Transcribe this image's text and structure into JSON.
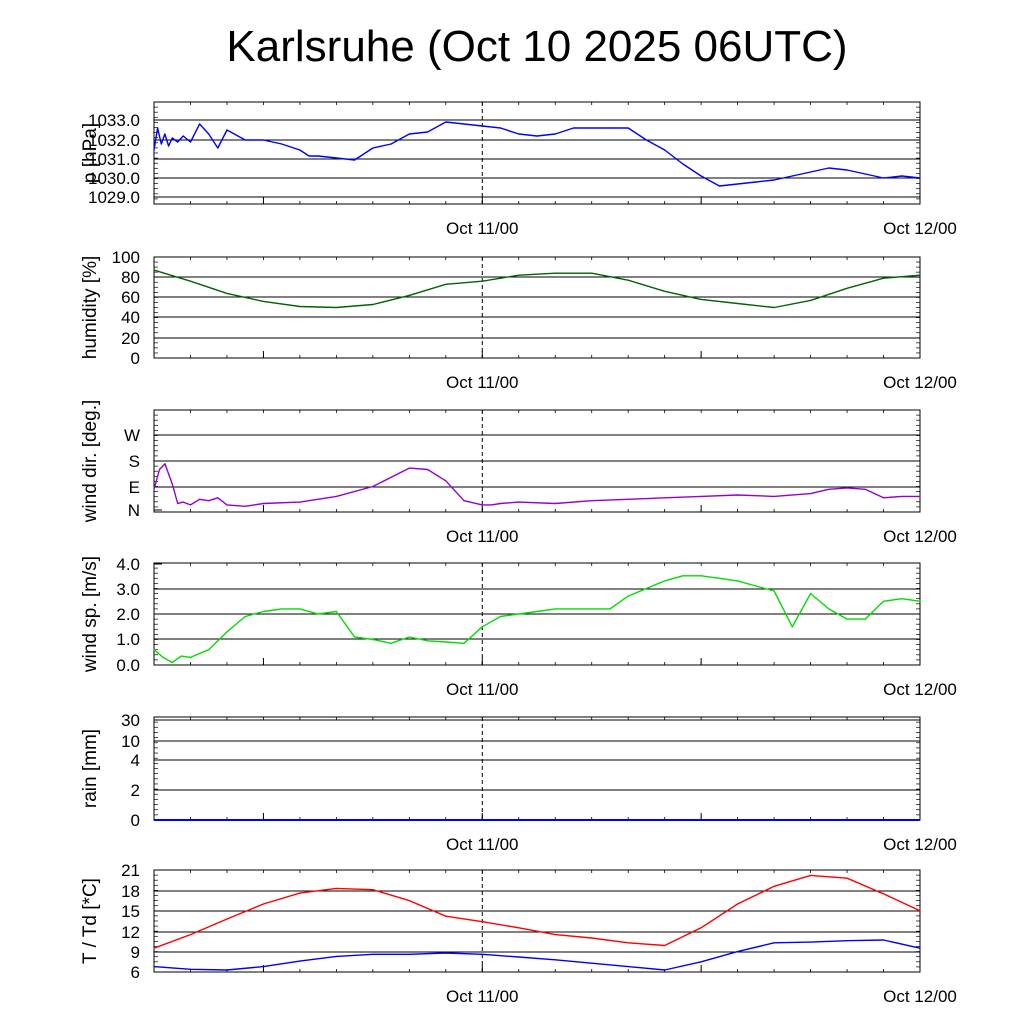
{
  "title": "Karlsruhe (Oct 10 2025 06UTC)",
  "colors": {
    "pressure": "#0000ff",
    "humidity": "#006400",
    "wind_dir": "#9400d3",
    "wind_speed": "#00dd00",
    "temperature": "#ff0000",
    "dewpoint": "#0000ff",
    "grid": "#000000"
  },
  "chart_data": [
    {
      "type": "line",
      "ylabel": "p [hPa]",
      "x_ticks": [
        "Oct 11/00",
        "Oct 12/00"
      ],
      "y_ticks": [
        "1033.0",
        "1032.0",
        "1031.0",
        "1030.0",
        "1029.0"
      ],
      "ylim": [
        1028.8,
        1033.9
      ],
      "x": [
        6,
        6.2,
        6.4,
        6.6,
        6.8,
        7,
        7.3,
        7.6,
        8,
        8.5,
        9,
        9.5,
        10,
        11,
        12,
        13,
        14,
        14.5,
        15,
        16,
        17,
        18,
        19,
        20,
        21,
        22,
        23,
        24,
        25,
        26,
        27,
        28,
        29,
        30,
        31,
        32,
        33,
        34,
        35,
        36,
        37,
        38,
        39,
        40,
        41,
        42,
        43,
        44,
        45,
        46,
        47,
        48
      ],
      "series": [
        {
          "name": "",
          "values": [
            1031.5,
            1032.6,
            1031.8,
            1032.3,
            1031.7,
            1032.1,
            1031.9,
            1032.2,
            1031.9,
            1032.8,
            1032.3,
            1031.6,
            1032.5,
            1032.0,
            1032.0,
            1031.8,
            1031.5,
            1031.2,
            1031.2,
            1031.1,
            1031.0,
            1031.6,
            1031.8,
            1032.3,
            1032.4,
            1032.9,
            1032.8,
            1032.7,
            1032.6,
            1032.3,
            1032.2,
            1032.3,
            1032.6,
            1032.6,
            1032.6,
            1032.6,
            1032.0,
            1031.5,
            1030.8,
            1030.2,
            1029.7,
            1029.8,
            1029.9,
            1030.0,
            1030.2,
            1030.4,
            1030.6,
            1030.5,
            1030.3,
            1030.1,
            1030.2,
            1030.1
          ]
        }
      ]
    },
    {
      "type": "line",
      "ylabel": "humidity [%]",
      "x_ticks": [
        "Oct 11/00",
        "Oct 12/00"
      ],
      "y_ticks": [
        "100",
        "80",
        "60",
        "40",
        "20",
        "0"
      ],
      "ylim": [
        0,
        100
      ],
      "x": [
        6,
        8,
        10,
        12,
        14,
        16,
        18,
        20,
        22,
        24,
        26,
        28,
        30,
        32,
        34,
        36,
        38,
        40,
        42,
        44,
        46,
        48
      ],
      "series": [
        {
          "name": "",
          "values": [
            87,
            76,
            64,
            56,
            51,
            50,
            53,
            62,
            73,
            76,
            82,
            84,
            84,
            77,
            66,
            58,
            54,
            50,
            57,
            69,
            79,
            82
          ]
        }
      ]
    },
    {
      "type": "line",
      "ylabel": "wind dir. [deg.]",
      "x_ticks": [
        "Oct 11/00",
        "Oct 12/00"
      ],
      "y_ticks": [
        "W",
        "S",
        "E",
        "N"
      ],
      "ylim": [
        0,
        360
      ],
      "x": [
        6,
        6.3,
        6.6,
        7,
        7.3,
        7.6,
        8,
        8.5,
        9,
        9.5,
        10,
        11,
        12,
        14,
        16,
        18,
        20,
        21,
        22,
        23,
        24,
        24.5,
        25,
        26,
        28,
        30,
        32,
        34,
        36,
        38,
        40,
        42,
        43,
        44,
        45,
        46,
        47,
        48
      ],
      "series": [
        {
          "name": "",
          "values": [
            80,
            150,
            170,
            100,
            30,
            35,
            25,
            45,
            40,
            50,
            25,
            20,
            30,
            35,
            55,
            90,
            155,
            150,
            110,
            40,
            25,
            25,
            30,
            35,
            30,
            40,
            45,
            50,
            55,
            60,
            55,
            65,
            80,
            85,
            80,
            50,
            55,
            55
          ]
        }
      ]
    },
    {
      "type": "line",
      "ylabel": "wind sp. [m/s]",
      "x_ticks": [
        "Oct 11/00",
        "Oct 12/00"
      ],
      "y_ticks": [
        "4.0",
        "3.0",
        "2.0",
        "1.0",
        "0.0"
      ],
      "ylim": [
        0,
        4
      ],
      "x": [
        6,
        6.5,
        7,
        7.5,
        8,
        9,
        10,
        11,
        12,
        13,
        14,
        15,
        16,
        17,
        18,
        19,
        20,
        21,
        22,
        23,
        24,
        25,
        26,
        27,
        28,
        29,
        30,
        31,
        32,
        33,
        34,
        35,
        36,
        37,
        38,
        39,
        40,
        41,
        42,
        43,
        44,
        45,
        46,
        47,
        48
      ],
      "series": [
        {
          "name": "",
          "values": [
            0.6,
            0.3,
            0.1,
            0.35,
            0.3,
            0.6,
            1.3,
            1.9,
            2.1,
            2.2,
            2.2,
            2.0,
            2.1,
            1.1,
            1.0,
            0.85,
            1.1,
            0.95,
            0.9,
            0.85,
            1.5,
            1.9,
            2.0,
            2.1,
            2.2,
            2.2,
            2.2,
            2.2,
            2.7,
            3.0,
            3.3,
            3.5,
            3.5,
            3.4,
            3.3,
            3.1,
            2.9,
            1.5,
            2.8,
            2.2,
            1.8,
            1.8,
            2.5,
            2.6,
            2.5
          ]
        }
      ]
    },
    {
      "type": "line",
      "ylabel": "rain [mm]",
      "x_ticks": [
        "Oct 11/00",
        "Oct 12/00"
      ],
      "y_ticks": [
        "30",
        "10",
        "4",
        "2",
        "0"
      ],
      "ylim": [
        0,
        30
      ],
      "x": [
        6,
        48
      ],
      "series": [
        {
          "name": "",
          "values": [
            0,
            0
          ]
        }
      ]
    },
    {
      "type": "line",
      "ylabel": "T / Td [*C]",
      "x_ticks": [
        "Oct 11/00",
        "Oct 12/00"
      ],
      "y_ticks": [
        "21",
        "18",
        "15",
        "12",
        "9",
        "6"
      ],
      "ylim": [
        6,
        21
      ],
      "x": [
        6,
        8,
        10,
        12,
        14,
        16,
        18,
        20,
        22,
        24,
        26,
        28,
        30,
        32,
        34,
        36,
        38,
        40,
        42,
        44,
        46,
        48
      ],
      "series": [
        {
          "name": "",
          "values": [
            9.5,
            11.5,
            13.8,
            16.0,
            17.6,
            18.3,
            18.1,
            16.5,
            14.2,
            13.4,
            12.5,
            11.5,
            11.0,
            10.3,
            9.9,
            12.5,
            16.0,
            18.6,
            20.2,
            19.8,
            17.5,
            15.0
          ]
        },
        {
          "name": "",
          "values": [
            6.8,
            6.4,
            6.3,
            6.8,
            7.6,
            8.3,
            8.6,
            8.6,
            8.8,
            8.6,
            8.2,
            7.8,
            7.3,
            6.8,
            6.3,
            7.5,
            9.0,
            10.3,
            10.4,
            10.6,
            10.7,
            9.5
          ]
        }
      ]
    }
  ]
}
